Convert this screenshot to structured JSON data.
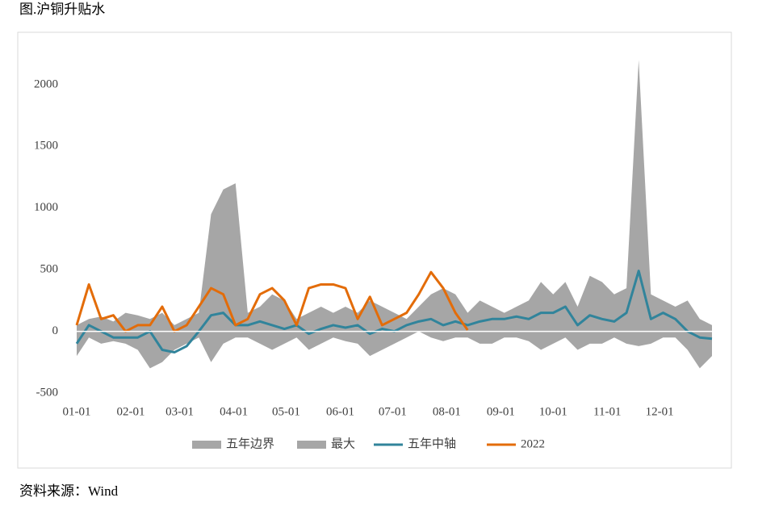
{
  "header": {
    "title": "图.沪铜升贴水"
  },
  "chart_data": {
    "type": "line",
    "x": [
      "01-01",
      "01-08",
      "01-15",
      "01-22",
      "01-29",
      "02-05",
      "02-12",
      "02-19",
      "02-26",
      "03-05",
      "03-12",
      "03-19",
      "03-26",
      "04-02",
      "04-09",
      "04-16",
      "04-23",
      "04-30",
      "05-07",
      "05-14",
      "05-21",
      "05-28",
      "06-04",
      "06-11",
      "06-18",
      "06-25",
      "07-02",
      "07-09",
      "07-16",
      "07-23",
      "07-30",
      "08-06",
      "08-13",
      "08-20",
      "08-27",
      "09-03",
      "09-10",
      "09-17",
      "09-24",
      "10-01",
      "10-08",
      "10-15",
      "10-22",
      "10-29",
      "11-05",
      "11-12",
      "11-19",
      "11-26",
      "12-03",
      "12-10",
      "12-17",
      "12-24",
      "12-31"
    ],
    "xticks": [
      "01-01",
      "02-01",
      "03-01",
      "04-01",
      "05-01",
      "06-01",
      "07-01",
      "08-01",
      "09-01",
      "10-01",
      "11-01",
      "12-01"
    ],
    "ylim": [
      -500,
      2300
    ],
    "yticks": [
      -500,
      0,
      500,
      1000,
      1500,
      2000
    ],
    "legend": "bottom",
    "series": [
      {
        "name": "五年边界",
        "color": "#a6a6a6",
        "kind": "area",
        "values": [
          -200,
          -50,
          -100,
          -80,
          -100,
          -150,
          -300,
          -250,
          -150,
          -100,
          -50,
          -250,
          -100,
          -50,
          -50,
          -100,
          -150,
          -100,
          -50,
          -150,
          -100,
          -50,
          -80,
          -100,
          -200,
          -150,
          -100,
          -50,
          0,
          -50,
          -80,
          -50,
          -50,
          -100,
          -100,
          -50,
          -50,
          -80,
          -150,
          -100,
          -50,
          -150,
          -100,
          -100,
          -50,
          -100,
          -120,
          -100,
          -50,
          -50,
          -150,
          -300,
          -200
        ]
      },
      {
        "name": "最大",
        "color": "#a6a6a6",
        "kind": "area",
        "values": [
          50,
          100,
          120,
          80,
          150,
          130,
          100,
          150,
          50,
          100,
          150,
          950,
          1150,
          1200,
          150,
          200,
          300,
          250,
          100,
          150,
          200,
          150,
          200,
          150,
          250,
          200,
          150,
          100,
          200,
          300,
          350,
          300,
          150,
          250,
          200,
          150,
          200,
          250,
          400,
          300,
          400,
          200,
          450,
          400,
          300,
          350,
          2200,
          300,
          250,
          200,
          250,
          100,
          50
        ]
      },
      {
        "name": "五年中轴",
        "color": "#31849b",
        "kind": "line",
        "values": [
          -100,
          50,
          0,
          -50,
          -50,
          -50,
          0,
          -150,
          -170,
          -120,
          0,
          130,
          150,
          50,
          50,
          80,
          50,
          20,
          50,
          -20,
          20,
          50,
          30,
          50,
          -20,
          20,
          0,
          50,
          80,
          100,
          50,
          80,
          50,
          80,
          100,
          100,
          120,
          100,
          150,
          150,
          200,
          50,
          130,
          100,
          80,
          150,
          490,
          100,
          150,
          100,
          0,
          -50,
          -60
        ]
      },
      {
        "name": "2022",
        "color": "#e36c09",
        "kind": "line",
        "values": [
          50,
          380,
          100,
          130,
          0,
          50,
          50,
          200,
          0,
          50,
          200,
          350,
          300,
          50,
          100,
          300,
          350,
          250,
          50,
          350,
          380,
          380,
          350,
          100,
          280,
          50,
          100,
          150,
          300,
          480,
          350,
          150,
          10,
          null,
          null,
          null,
          null,
          null,
          null,
          null,
          null,
          null,
          null,
          null,
          null,
          null,
          null,
          null,
          null,
          null,
          null,
          null,
          null
        ]
      }
    ]
  },
  "footer": {
    "source": "资料来源：Wind"
  }
}
